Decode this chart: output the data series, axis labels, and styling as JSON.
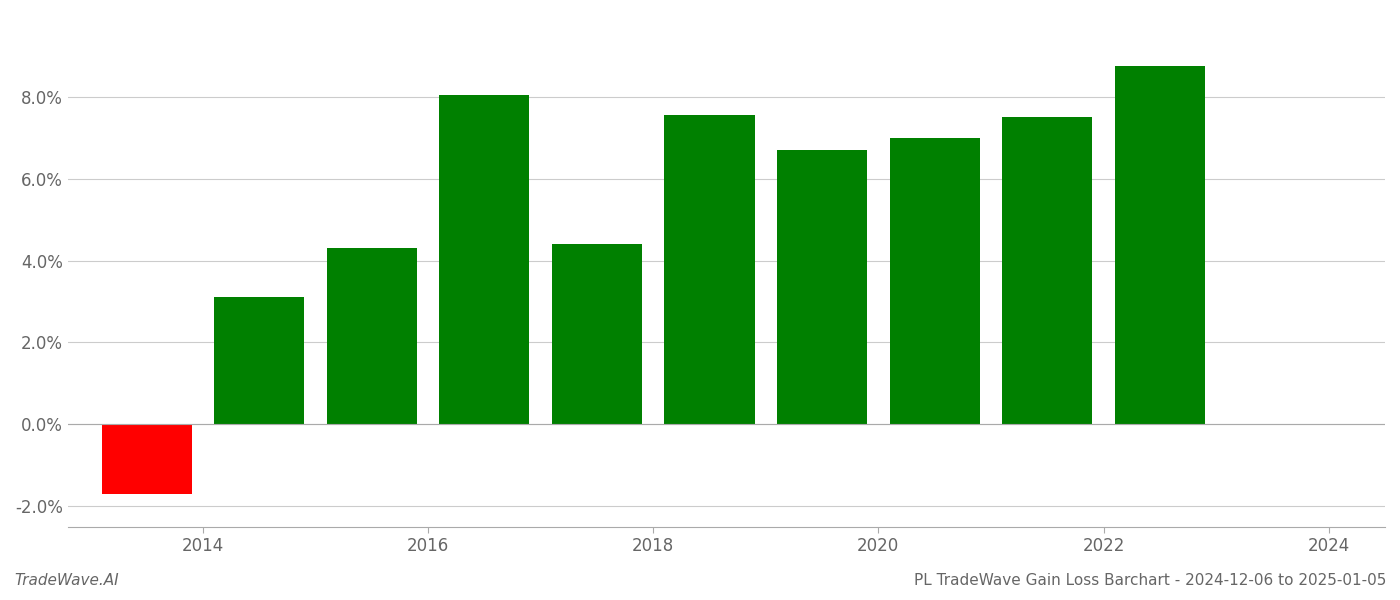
{
  "bar_centers": [
    2013.5,
    2014.5,
    2015.5,
    2016.5,
    2017.5,
    2018.5,
    2019.5,
    2020.5,
    2021.5,
    2022.5
  ],
  "values": [
    -0.017,
    0.031,
    0.043,
    0.0805,
    0.044,
    0.0755,
    0.067,
    0.07,
    0.075,
    0.0875
  ],
  "colors": [
    "#ff0000",
    "#008000",
    "#008000",
    "#008000",
    "#008000",
    "#008000",
    "#008000",
    "#008000",
    "#008000",
    "#008000"
  ],
  "xlim": [
    2012.8,
    2024.5
  ],
  "ylim": [
    -0.025,
    0.1
  ],
  "yticks": [
    -0.02,
    0.0,
    0.02,
    0.04,
    0.06,
    0.08
  ],
  "xticks": [
    2014,
    2016,
    2018,
    2020,
    2022,
    2024
  ],
  "xtick_labels": [
    "2014",
    "2016",
    "2018",
    "2020",
    "2022",
    "2024"
  ],
  "footer_left": "TradeWave.AI",
  "footer_right": "PL TradeWave Gain Loss Barchart - 2024-12-06 to 2025-01-05",
  "background_color": "#ffffff",
  "bar_width": 0.8,
  "grid_color": "#cccccc",
  "axis_color": "#aaaaaa",
  "text_color": "#666666",
  "footer_fontsize": 11,
  "tick_fontsize": 12
}
